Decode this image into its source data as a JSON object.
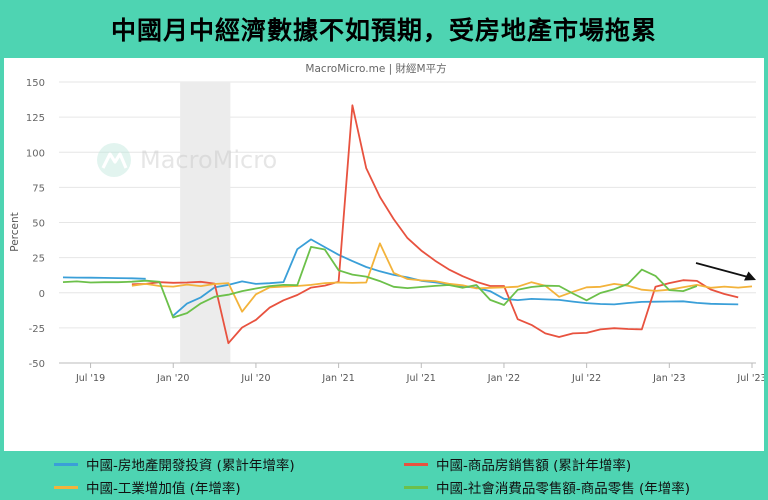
{
  "banner": {
    "title": "中國月中經濟數據不如預期，受房地產市場拖累"
  },
  "chart": {
    "source_label": "MacroMicro.me | 財經M平方",
    "watermark": "MacroMicro",
    "accent": "#4ed4b2"
  },
  "chart_data": {
    "type": "line",
    "ylabel": "Percent",
    "ylim": [
      -50,
      150
    ],
    "yticks": [
      150,
      125,
      100,
      75,
      50,
      25,
      0,
      -25,
      -50
    ],
    "x_start": "2019-05",
    "xticks": [
      {
        "label": "Jul '19",
        "index": 2
      },
      {
        "label": "Jan '20",
        "index": 8
      },
      {
        "label": "Jul '20",
        "index": 14
      },
      {
        "label": "Jan '21",
        "index": 20
      },
      {
        "label": "Jul '21",
        "index": 26
      },
      {
        "label": "Jan '22",
        "index": 32
      },
      {
        "label": "Jul '22",
        "index": 38
      },
      {
        "label": "Jan '23",
        "index": 44
      },
      {
        "label": "Jul '23",
        "index": 50
      }
    ],
    "shaded_region": {
      "from": 9,
      "to": 12,
      "color": "#ececec"
    },
    "grid": true,
    "legend_placement": "bottom",
    "series": [
      {
        "name": "中國-房地產開發投資 (累計年增率)",
        "color": "#3a9fd8",
        "values": [
          11.2,
          10.9,
          10.8,
          10.7,
          10.6,
          10.4,
          10.3,
          9.9,
          null,
          -16.3,
          -7.7,
          -3.3,
          3.8,
          5.6,
          8.1,
          6.3,
          6.8,
          7.6,
          31,
          38,
          32.5,
          27,
          22.5,
          18.3,
          15.3,
          12.7,
          10.9,
          8.5,
          7.4,
          6.1,
          4.4,
          3.7,
          1.1,
          -4.3,
          -5.2,
          -4.4,
          -4.7,
          -5.1,
          -6.3,
          -7.4,
          -8,
          -8.3,
          -7.3,
          -6.5,
          -6.4,
          -6.2,
          -6.1,
          -7.2,
          -7.9,
          -8.1,
          -8.3
        ],
        "x_offset": -1
      },
      {
        "name": "中國-商品房銷售額 (累計年增率)",
        "color": "#e8523f",
        "values": [
          6,
          6.3,
          7.5,
          7.1,
          7.3,
          7.8,
          6.5,
          -35.9,
          -24.7,
          -19.3,
          -10.6,
          -5.4,
          -1.6,
          3.7,
          5.1,
          7.8,
          133.4,
          88.7,
          68.2,
          52.4,
          38.9,
          30,
          22.8,
          16.6,
          11.8,
          7.8,
          4.8,
          4.8,
          -18.8,
          -22.9,
          -28.9,
          -31.5,
          -28.9,
          -28.6,
          -26.1,
          -25.2,
          -25.8,
          -26.1,
          4.3,
          6.9,
          8.9,
          8.4,
          2.3,
          -0.9,
          -3.3
        ],
        "x_offset": 5
      },
      {
        "name": "中國-工業增加值 (年增率)",
        "color": "#f3b33b",
        "values": [
          5,
          6.3,
          4.8,
          4.4,
          5.8,
          4.7,
          6.2,
          6.9,
          -13.5,
          -1.1,
          3.9,
          4.4,
          4.8,
          5.6,
          6.9,
          7.3,
          7,
          7.3,
          35.1,
          14.1,
          9.8,
          8.8,
          8.3,
          6.4,
          5.3,
          3.1,
          3.5,
          3.8,
          4.3,
          7.5,
          5,
          -2.9,
          0.7,
          3.9,
          4.2,
          6.3,
          5,
          2.2,
          1.3,
          2.2,
          3.9,
          5.6,
          3.5,
          4.4,
          3.7,
          4.5
        ],
        "x_offset": 5
      },
      {
        "name": "中國-社會消費品零售額-商品零售 (年增率)",
        "color": "#6cc04a",
        "values": [
          7.6,
          8.1,
          7.3,
          7.5,
          7.5,
          7.9,
          8.6,
          7.8,
          -17.6,
          -14.5,
          -7.6,
          -2.9,
          -1.4,
          1.2,
          3,
          4.7,
          5.6,
          5.4,
          32.6,
          30.8,
          16,
          12.9,
          11.5,
          8.3,
          4.2,
          3.3,
          4.1,
          4.9,
          5.5,
          3.5,
          5.5,
          -5.1,
          -8.7,
          2.1,
          4.1,
          5,
          4.8,
          -0.5,
          -5.4,
          -0.2,
          2.5,
          6.3,
          16.5,
          12,
          1.9,
          1.2,
          4.8
        ],
        "x_offset": 0
      }
    ]
  }
}
